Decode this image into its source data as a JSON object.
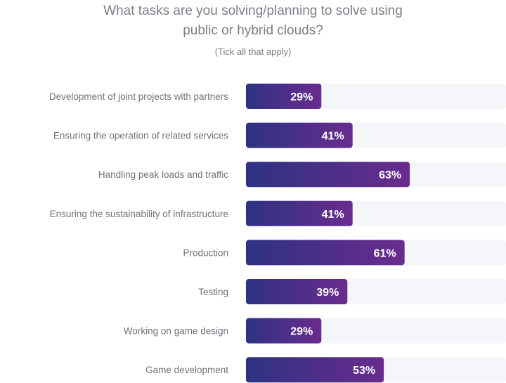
{
  "chart_data": {
    "type": "bar",
    "orientation": "horizontal",
    "title_lines": [
      "What tasks are you solving/planning to solve using",
      "public or hybrid clouds?"
    ],
    "subtitle": "(Tick all that apply)",
    "categories": [
      "Development of joint projects with partners",
      "Ensuring the operation of related services",
      "Handling peak loads and traffic",
      "Ensuring the sustainability of infrastructure",
      "Production",
      "Testing",
      "Working on game design",
      "Game development"
    ],
    "values": [
      29,
      41,
      63,
      41,
      61,
      39,
      29,
      53
    ],
    "value_labels": [
      "29%",
      "41%",
      "63%",
      "41%",
      "61%",
      "39%",
      "29%",
      "53%"
    ],
    "xlim": [
      0,
      100
    ],
    "grid": false,
    "legend": "none",
    "colors": {
      "bar_start": "#2d3282",
      "bar_end": "#6a2c8e",
      "track": "#f5f6f9",
      "label_text": "#6e7278",
      "value_text": "#ffffff"
    }
  }
}
